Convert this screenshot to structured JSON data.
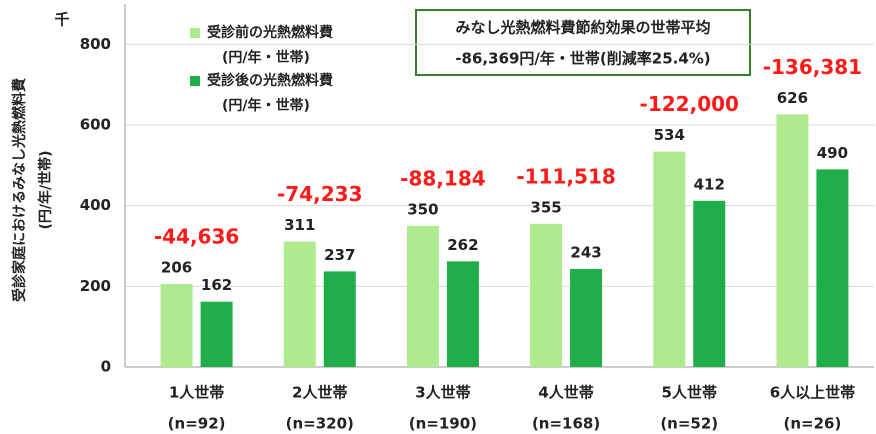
{
  "chart_data": {
    "type": "bar",
    "y_unit": "千",
    "y_label": [
      "受診家庭におけるみなし光熱燃料費",
      "(円/年/世帯)"
    ],
    "categories": [
      "1人世帯",
      "2人世帯",
      "3人世帯",
      "4人世帯",
      "5人世帯",
      "6人以上世帯"
    ],
    "category_sublabels": [
      "(n=92)",
      "(n=320)",
      "(n=190)",
      "(n=168)",
      "(n=52)",
      "(n=26)"
    ],
    "series": [
      {
        "name": "受診前の光熱燃料費",
        "unit": "(円/年・世帯)",
        "color": "#b0ea8e",
        "values": [
          206,
          311,
          350,
          355,
          534,
          626
        ]
      },
      {
        "name": "受診後の光熱燃料費",
        "unit": "(円/年・世帯)",
        "color": "#1fae49",
        "values": [
          162,
          237,
          262,
          243,
          412,
          490
        ]
      }
    ],
    "annotations": [
      "-44,636",
      "-74,233",
      "-88,184",
      "-111,518",
      "-122,000",
      "-136,381"
    ],
    "summary_box": [
      "みなし光熱燃料費節約効果の世帯平均",
      "-86,369円/年・世帯(削減率25.4%)"
    ],
    "ylim": [
      0,
      900
    ],
    "yticks": [
      0,
      200,
      400,
      600,
      800
    ],
    "grid": true
  }
}
